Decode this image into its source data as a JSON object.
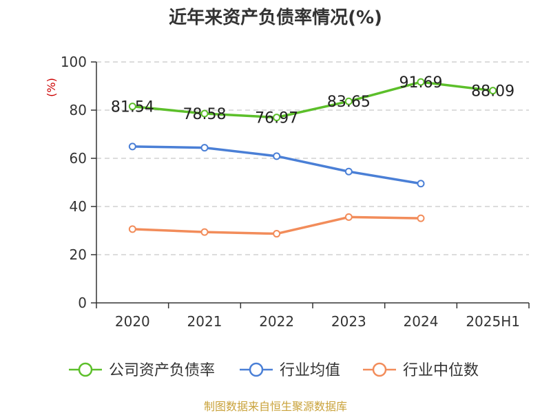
{
  "chart_data": {
    "type": "line",
    "title": "近年来资产负债率情况(%)",
    "ylabel": "(%)",
    "xlabel": "",
    "categories": [
      "2020",
      "2021",
      "2022",
      "2023",
      "2024",
      "2025H1"
    ],
    "ylim": [
      0,
      100
    ],
    "yticks": [
      0,
      20,
      40,
      60,
      80,
      100
    ],
    "grid": "horizontal-dashed",
    "legend_position": "bottom",
    "series": [
      {
        "name": "公司资产负债率",
        "color": "#5cbf2a",
        "values": [
          81.54,
          78.58,
          76.97,
          83.65,
          91.69,
          88.09
        ],
        "labels": [
          "81.54",
          "78.58",
          "76.97",
          "83.65",
          "91.69",
          "88.09"
        ]
      },
      {
        "name": "行业均值",
        "color": "#4a7fd6",
        "values": [
          64.9,
          64.4,
          60.9,
          54.5,
          49.5,
          null
        ]
      },
      {
        "name": "行业中位数",
        "color": "#f28c5a",
        "values": [
          30.6,
          29.4,
          28.7,
          35.6,
          35.1,
          null
        ]
      }
    ]
  },
  "source": "制图数据来自恒生聚源数据库"
}
